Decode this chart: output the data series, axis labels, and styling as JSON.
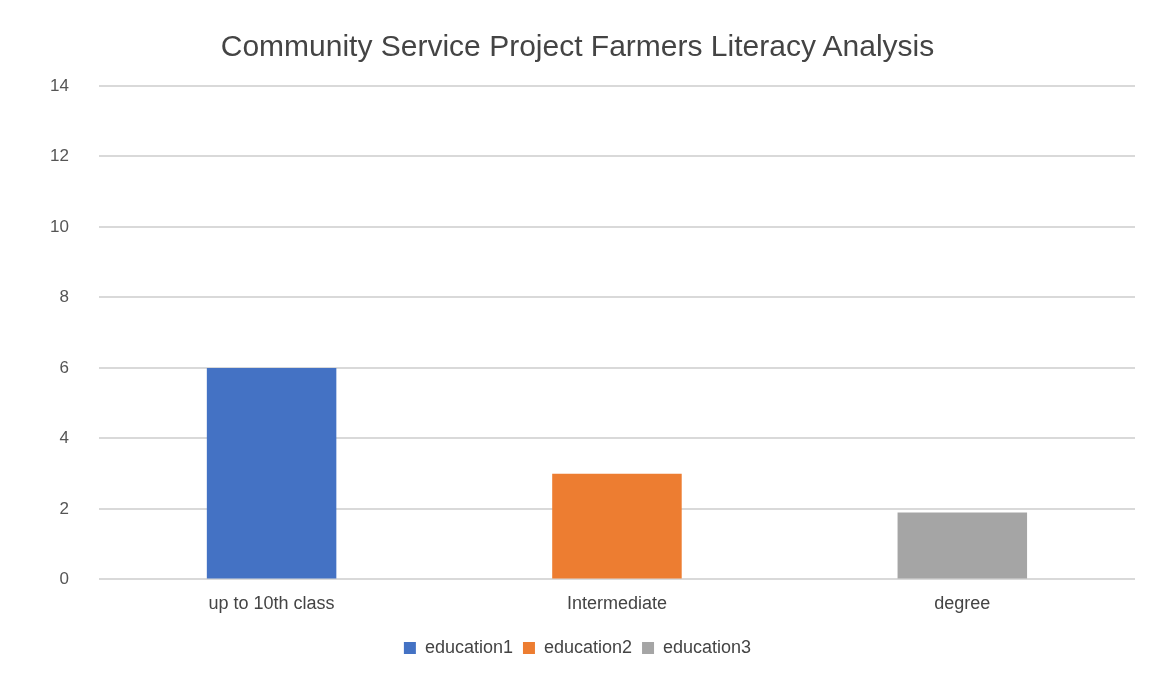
{
  "chart_data": {
    "type": "bar",
    "title": "Community Service Project Farmers Literacy Analysis",
    "categories": [
      "up to 10th class",
      "Intermediate",
      "degree"
    ],
    "series": [
      {
        "name": "education1",
        "color": "#4472c4",
        "values": [
          6,
          null,
          null
        ]
      },
      {
        "name": "education2",
        "color": "#ed7d31",
        "values": [
          null,
          3,
          null
        ]
      },
      {
        "name": "education3",
        "color": "#a5a5a5",
        "values": [
          null,
          null,
          1.9
        ]
      }
    ],
    "ylim": [
      0,
      14
    ],
    "yticks": [
      0,
      2,
      4,
      6,
      8,
      10,
      12,
      14
    ],
    "grid": "y",
    "legend": "bottom"
  }
}
